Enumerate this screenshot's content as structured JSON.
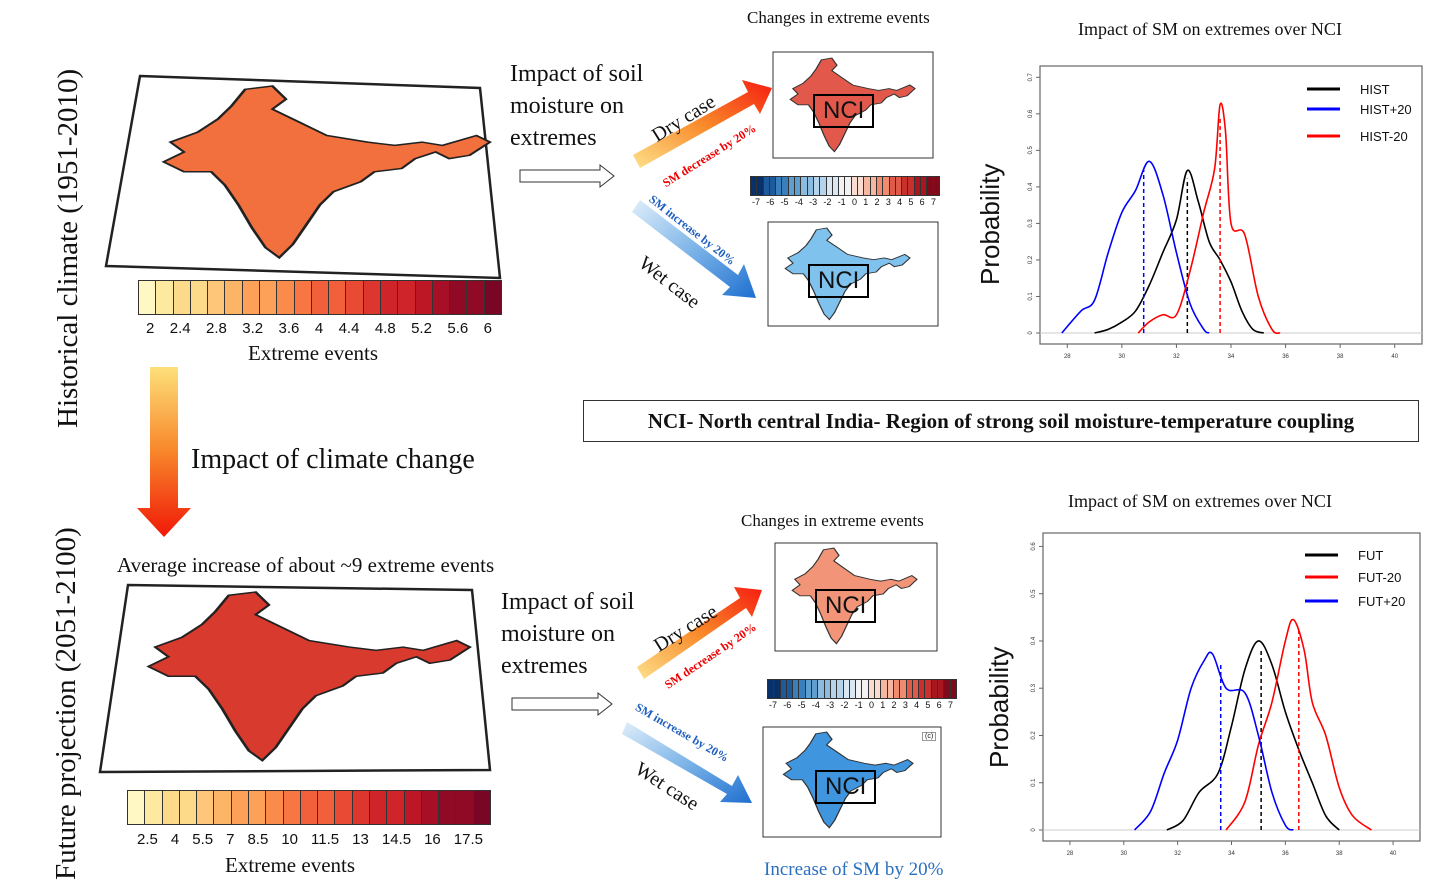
{
  "historical": {
    "side_label": "Historical climate (1951-2010)",
    "colorbar_ticks": [
      "2",
      "2.4",
      "2.8",
      "3.2",
      "3.6",
      "4",
      "4.4",
      "4.8",
      "5.2",
      "5.6",
      "6"
    ],
    "colorbar_label": "Extreme events",
    "impact_text": [
      "Impact of soil",
      "moisture on",
      "extremes"
    ],
    "changes_title": "Changes in extreme events",
    "dry_case": "Dry case",
    "sm_decrease": "SM decrease by 20%",
    "sm_increase": "SM increase by 20%",
    "wet_case": "Wet case",
    "region_label": "NCI"
  },
  "climate_change_label": "Impact of climate change",
  "nci_note": "NCI- North central India- Region of strong soil moisture-temperature coupling",
  "future": {
    "side_label": "Future projection (2051-2100)",
    "avg_increase": "Average increase of about ~9 extreme events",
    "colorbar_ticks": [
      "2.5",
      "4",
      "5.5",
      "7",
      "8.5",
      "10",
      "11.5",
      "13",
      "14.5",
      "16",
      "17.5"
    ],
    "colorbar_label": "Extreme events",
    "impact_text": [
      "Impact of soil",
      "moisture on",
      "extremes"
    ],
    "changes_title": "Changes in extreme events",
    "dry_case": "Dry case",
    "sm_decrease": "SM decrease by 20%",
    "sm_increase": "SM increase by 20%",
    "wet_case": "Wet case",
    "region_label": "NCI",
    "panel_tag": "(c)",
    "footer": "Increase of SM by 20%"
  },
  "diverging_ticks": [
    "-7",
    "-6",
    "-5",
    "-4",
    "-3",
    "-2",
    "-1",
    "0",
    "1",
    "2",
    "3",
    "4",
    "5",
    "6",
    "7"
  ],
  "colors": {
    "seq": [
      "#fff7c4",
      "#fde9a0",
      "#fdd98a",
      "#fdc678",
      "#fcb466",
      "#fca157",
      "#fb8b4a",
      "#f87642",
      "#f1603a",
      "#e84a33",
      "#dc362e",
      "#cf2429",
      "#bd1726",
      "#a70f26",
      "#900a26",
      "#7a0626"
    ],
    "div": [
      "#08306b",
      "#1c5a9c",
      "#3a7fbd",
      "#5f9fd0",
      "#8bbce0",
      "#b5d3ea",
      "#d9e7f3",
      "#f2f2f2",
      "#f9dccf",
      "#f5b7a0",
      "#ef8c70",
      "#e05a4a",
      "#c8302e",
      "#a8161f",
      "#800a1a"
    ],
    "map_hist": "#f2703d",
    "map_fut": "#d93a2e",
    "dry_map": "#e2584a",
    "wet_map": "#7fc2ee",
    "fut_dry_map": "#f19478",
    "fut_wet_map": "#3f95de"
  },
  "chart_data": [
    {
      "type": "line",
      "title": "Impact of SM on extremes over NCI",
      "ylabel": "Probability",
      "xlim": [
        27,
        41
      ],
      "ylim": [
        0,
        0.72
      ],
      "xticks": [
        28,
        30,
        32,
        34,
        36,
        38,
        40
      ],
      "yticks": [
        0,
        0.1,
        0.2,
        0.3,
        0.4,
        0.5,
        0.6,
        0.7
      ],
      "legend_position": "top-right",
      "series": [
        {
          "name": "HIST",
          "color": "#000000",
          "mean": 32.4,
          "points": [
            [
              29,
              0
            ],
            [
              29.5,
              0.01
            ],
            [
              30,
              0.03
            ],
            [
              30.5,
              0.06
            ],
            [
              31,
              0.13
            ],
            [
              31.5,
              0.22
            ],
            [
              32,
              0.31
            ],
            [
              32.4,
              0.445
            ],
            [
              32.8,
              0.36
            ],
            [
              33.2,
              0.25
            ],
            [
              33.6,
              0.2
            ],
            [
              34,
              0.14
            ],
            [
              34.4,
              0.06
            ],
            [
              34.8,
              0.01
            ],
            [
              35.2,
              0
            ]
          ]
        },
        {
          "name": "HIST+20",
          "color": "#0000ff",
          "mean": 30.8,
          "points": [
            [
              27.8,
              0
            ],
            [
              28.5,
              0.06
            ],
            [
              29,
              0.09
            ],
            [
              29.5,
              0.22
            ],
            [
              30,
              0.33
            ],
            [
              30.5,
              0.39
            ],
            [
              31,
              0.47
            ],
            [
              31.5,
              0.38
            ],
            [
              32,
              0.22
            ],
            [
              32.5,
              0.08
            ],
            [
              33,
              0.01
            ],
            [
              33.2,
              0
            ]
          ]
        },
        {
          "name": "HIST-20",
          "color": "#ff0000",
          "mean": 33.6,
          "points": [
            [
              30.6,
              0
            ],
            [
              31,
              0.03
            ],
            [
              31.5,
              0.05
            ],
            [
              32,
              0.05
            ],
            [
              32.5,
              0.17
            ],
            [
              33,
              0.33
            ],
            [
              33.4,
              0.45
            ],
            [
              33.6,
              0.625
            ],
            [
              33.8,
              0.55
            ],
            [
              34,
              0.3
            ],
            [
              34.5,
              0.27
            ],
            [
              35,
              0.1
            ],
            [
              35.5,
              0.01
            ],
            [
              35.8,
              0
            ]
          ]
        }
      ]
    },
    {
      "type": "line",
      "title": "Impact of SM on extremes over NCI",
      "ylabel": "Probability",
      "xlim": [
        27,
        41
      ],
      "ylim": [
        0,
        0.62
      ],
      "xticks": [
        28,
        30,
        32,
        34,
        36,
        38,
        40
      ],
      "yticks": [
        0,
        0.1,
        0.2,
        0.3,
        0.4,
        0.5,
        0.6
      ],
      "legend_position": "top-right",
      "series": [
        {
          "name": "FUT",
          "color": "#000000",
          "mean": 35.1,
          "points": [
            [
              31.6,
              0
            ],
            [
              32.2,
              0.02
            ],
            [
              32.8,
              0.08
            ],
            [
              33.5,
              0.12
            ],
            [
              34,
              0.22
            ],
            [
              34.5,
              0.34
            ],
            [
              35,
              0.4
            ],
            [
              35.5,
              0.35
            ],
            [
              36,
              0.25
            ],
            [
              36.5,
              0.17
            ],
            [
              37,
              0.1
            ],
            [
              37.5,
              0.03
            ],
            [
              38,
              0
            ]
          ]
        },
        {
          "name": "FUT-20",
          "color": "#ff0000",
          "mean": 36.5,
          "points": [
            [
              33.8,
              0
            ],
            [
              34.5,
              0.06
            ],
            [
              35,
              0.18
            ],
            [
              35.5,
              0.27
            ],
            [
              36,
              0.4
            ],
            [
              36.3,
              0.445
            ],
            [
              36.7,
              0.38
            ],
            [
              37,
              0.27
            ],
            [
              37.5,
              0.2
            ],
            [
              38,
              0.09
            ],
            [
              38.5,
              0.03
            ],
            [
              39.2,
              0
            ]
          ]
        },
        {
          "name": "FUT+20",
          "color": "#0000ff",
          "mean": 33.6,
          "points": [
            [
              30.4,
              0
            ],
            [
              31,
              0.04
            ],
            [
              31.5,
              0.12
            ],
            [
              32,
              0.19
            ],
            [
              32.5,
              0.3
            ],
            [
              33,
              0.36
            ],
            [
              33.3,
              0.372
            ],
            [
              33.8,
              0.3
            ],
            [
              34.5,
              0.29
            ],
            [
              35,
              0.2
            ],
            [
              35.5,
              0.08
            ],
            [
              36,
              0.01
            ],
            [
              36.3,
              0
            ]
          ]
        }
      ]
    }
  ]
}
